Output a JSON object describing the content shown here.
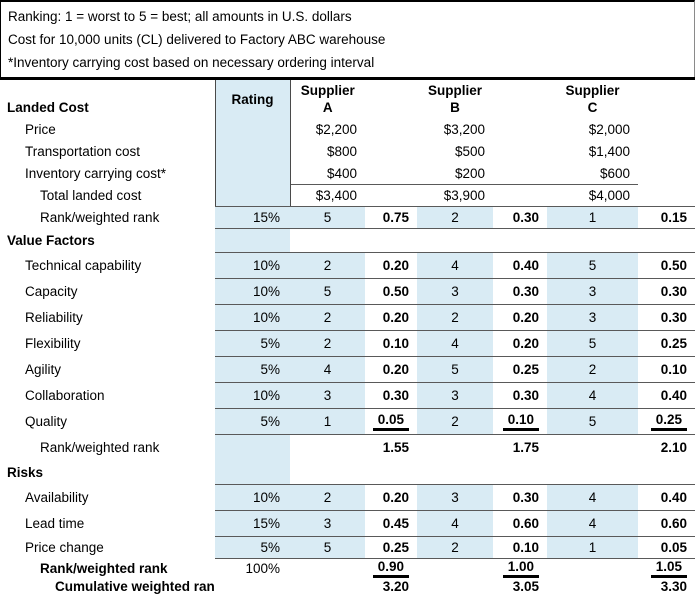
{
  "notes": [
    "Ranking: 1 = worst to 5 = best; all amounts in U.S. dollars",
    "Cost for 10,000 units (CL) delivered to Factory ABC warehouse",
    "*Inventory carrying cost based on necessary ordering interval"
  ],
  "colors": {
    "highlight_blue": "#d9ebf4",
    "rule_gray": "#595959"
  },
  "header": {
    "section": "Landed Cost",
    "rating": "Rating",
    "suppliers": [
      {
        "name": "Supplier",
        "letter": "A"
      },
      {
        "name": "Supplier",
        "letter": "B"
      },
      {
        "name": "Supplier",
        "letter": "C"
      }
    ]
  },
  "rows": [
    {
      "label": "Price",
      "a": "$2,200",
      "b": "$3,200",
      "c": "$2,000"
    },
    {
      "label": "Transportation cost",
      "a": "$800",
      "b": "$500",
      "c": "$1,400"
    },
    {
      "label": "Inventory carrying cost*",
      "a": "$400",
      "b": "$200",
      "c": "$600"
    },
    {
      "label": "Total landed cost",
      "a": "$3,400",
      "b": "$3,900",
      "c": "$4,000"
    },
    {
      "label": "Rank/weighted rank",
      "rating": "15%",
      "a": "5",
      "aw": "0.75",
      "b": "2",
      "bw": "0.30",
      "c": "1",
      "cw": "0.15"
    },
    {
      "label": "Value Factors"
    },
    {
      "label": "Technical capability",
      "rating": "10%",
      "a": "2",
      "aw": "0.20",
      "b": "4",
      "bw": "0.40",
      "c": "5",
      "cw": "0.50"
    },
    {
      "label": "Capacity",
      "rating": "10%",
      "a": "5",
      "aw": "0.50",
      "b": "3",
      "bw": "0.30",
      "c": "3",
      "cw": "0.30"
    },
    {
      "label": "Reliability",
      "rating": "10%",
      "a": "2",
      "aw": "0.20",
      "b": "2",
      "bw": "0.20",
      "c": "3",
      "cw": "0.30"
    },
    {
      "label": "Flexibility",
      "rating": "5%",
      "a": "2",
      "aw": "0.10",
      "b": "4",
      "bw": "0.20",
      "c": "5",
      "cw": "0.25"
    },
    {
      "label": "Agility",
      "rating": "5%",
      "a": "4",
      "aw": "0.20",
      "b": "5",
      "bw": "0.25",
      "c": "2",
      "cw": "0.10"
    },
    {
      "label": "Collaboration",
      "rating": "10%",
      "a": "3",
      "aw": "0.30",
      "b": "3",
      "bw": "0.30",
      "c": "4",
      "cw": "0.40"
    },
    {
      "label": "Quality",
      "rating": "5%",
      "a": "1",
      "aw": "0.05",
      "b": "2",
      "bw": "0.10",
      "c": "5",
      "cw": "0.25"
    },
    {
      "label": "Rank/weighted rank",
      "aw": "1.55",
      "bw": "1.75",
      "cw": "2.10"
    },
    {
      "label": "Risks"
    },
    {
      "label": "Availability",
      "rating": "10%",
      "a": "2",
      "aw": "0.20",
      "b": "3",
      "bw": "0.30",
      "c": "4",
      "cw": "0.40"
    },
    {
      "label": "Lead time",
      "rating": "15%",
      "a": "3",
      "aw": "0.45",
      "b": "4",
      "bw": "0.60",
      "c": "4",
      "cw": "0.60"
    },
    {
      "label": "Price change",
      "rating": "5%",
      "a": "5",
      "aw": "0.25",
      "b": "2",
      "bw": "0.10",
      "c": "1",
      "cw": "0.05"
    },
    {
      "label": "Rank/weighted rank",
      "rating": "100%",
      "aw": "0.90",
      "bw": "1.00",
      "cw": "1.05"
    },
    {
      "label": "Cumulative weighted rank",
      "aw": "3.20",
      "bw": "3.05",
      "cw": "3.30"
    }
  ]
}
